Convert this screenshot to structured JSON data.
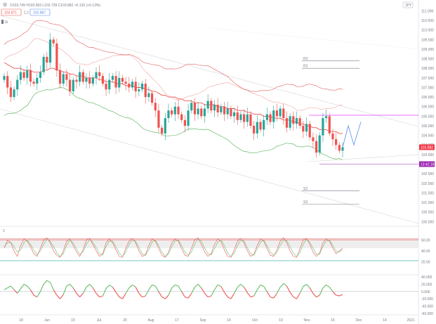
{
  "header": {
    "symbol_icon": "gear-icon",
    "ohlc": "O103.749 H103.953 L103.739 C103.882 +0.133 (+0.13%)",
    "sell_price": "103.871",
    "spread": "1.2",
    "buy_price": "103.887",
    "top_right_button": "JPY"
  },
  "indicator_label": "1k",
  "osc_label": "2",
  "colors": {
    "bull": "#26a69a",
    "bear": "#ef5350",
    "band_red": "#e57373",
    "band_green": "#66bb6a",
    "magenta": "#e040fb",
    "blue": "#5b8def",
    "axis_text": "#787b86",
    "badge_red": "#f23645",
    "badge_magenta": "#9c27b0"
  },
  "price_axis": {
    "labels": [
      "111.000",
      "110.500",
      "110.000",
      "109.500",
      "109.000",
      "108.500",
      "108.000",
      "107.500",
      "107.000",
      "106.500",
      "106.000",
      "105.500",
      "105.000",
      "104.500",
      "104.000",
      "103.500",
      "103.000",
      "102.500",
      "102.000",
      "101.500",
      "101.000",
      "100.500",
      "100.000"
    ],
    "last_price_badge": "103.882",
    "level_badge": "13:42:18"
  },
  "osc_axis": {
    "labels": [
      "60.00",
      "40.00",
      "20.00"
    ]
  },
  "osc2_axis": {
    "labels": [
      "40.000",
      "20.000",
      "0.000",
      "-20.000",
      "-40.000",
      "-60.000"
    ]
  },
  "pivots": [
    {
      "label": "R3",
      "price": 108.4
    },
    {
      "label": "R2",
      "price": 108.0
    },
    {
      "label": "S2",
      "price": 101.6
    },
    {
      "label": "S3",
      "price": 100.9
    }
  ],
  "time_axis": [
    "18",
    "Jun",
    "15",
    "Jul",
    "20",
    "Aug",
    "17",
    "Sep",
    "14",
    "Oct",
    "19",
    "Nov",
    "16",
    "Dec",
    "14",
    "2021"
  ],
  "chart_data": {
    "type": "candlestick",
    "x_labels": [
      "18",
      "Jun",
      "15",
      "Jul",
      "20",
      "Aug",
      "17",
      "Sep",
      "14",
      "Oct",
      "19",
      "Nov",
      "16",
      "Dec",
      "14",
      "2021"
    ],
    "ylim": [
      99.9,
      111.2
    ],
    "last_price": 103.882,
    "closes": [
      107.6,
      107.0,
      106.5,
      106.9,
      107.4,
      107.8,
      107.5,
      107.9,
      107.3,
      107.2,
      107.5,
      107.8,
      108.6,
      108.3,
      109.5,
      109.3,
      107.9,
      107.2,
      107.7,
      107.4,
      106.8,
      107.4,
      107.3,
      107.8,
      107.3,
      107.5,
      107.2,
      107.5,
      107.8,
      107.6,
      107.2,
      106.9,
      107.4,
      107.6,
      107.0,
      107.5,
      107.3,
      107.2,
      107.0,
      107.3,
      106.8,
      106.9,
      107.2,
      106.5,
      106.7,
      106.2,
      105.8,
      104.9,
      104.6,
      105.4,
      105.8,
      105.6,
      106.0,
      105.6,
      105.3,
      105.0,
      105.8,
      106.2,
      105.6,
      105.9,
      105.5,
      105.9,
      106.3,
      105.8,
      106.1,
      105.7,
      106.0,
      105.6,
      105.9,
      105.5,
      105.7,
      105.3,
      105.6,
      105.2,
      105.6,
      105.0,
      104.6,
      105.2,
      104.8,
      105.3,
      105.6,
      105.2,
      105.8,
      105.5,
      105.9,
      105.4,
      104.9,
      105.5,
      105.1,
      105.4,
      105.0,
      104.7,
      105.1,
      104.4,
      104.2,
      103.6,
      104.5,
      105.4,
      105.5,
      104.6,
      104.3,
      104.0,
      103.7,
      103.882
    ],
    "ema_red": [
      108.3,
      108.2,
      108.1,
      108.0,
      108.0,
      108.0,
      107.9,
      107.9,
      107.9,
      107.8,
      107.8,
      107.8,
      107.9,
      107.9,
      108.0,
      108.0,
      107.9,
      107.9,
      107.8,
      107.8,
      107.7,
      107.7,
      107.6,
      107.6,
      107.6,
      107.5,
      107.5,
      107.5,
      107.5,
      107.4,
      107.4,
      107.3,
      107.3,
      107.3,
      107.2,
      107.2,
      107.2,
      107.1,
      107.1,
      107.1,
      107.0,
      107.0,
      107.0,
      106.9,
      106.9,
      106.8,
      106.8,
      106.7,
      106.6,
      106.6,
      106.5,
      106.5,
      106.5,
      106.4,
      106.4,
      106.3,
      106.3,
      106.3,
      106.2,
      106.2,
      106.2,
      106.1,
      106.1,
      106.1,
      106.1,
      106.0,
      106.0,
      106.0,
      105.9,
      105.9,
      105.9,
      105.8,
      105.8,
      105.8,
      105.7,
      105.7,
      105.6,
      105.6,
      105.6,
      105.5,
      105.5,
      105.5,
      105.4,
      105.4,
      105.4,
      105.3,
      105.3,
      105.3,
      105.2,
      105.2,
      105.1,
      105.1,
      105.0,
      105.0,
      104.9,
      104.9,
      104.8,
      104.8,
      104.8,
      104.7,
      104.7,
      104.7,
      104.6,
      104.6
    ]
  },
  "osc_data": {
    "stoch_k": [
      45,
      60,
      55,
      40,
      30,
      50,
      62,
      58,
      48,
      35,
      30,
      45,
      60,
      64,
      55,
      40,
      32,
      28,
      40,
      58,
      62,
      50,
      38,
      30,
      42,
      60,
      63,
      52,
      40,
      30,
      35,
      55,
      62,
      55,
      42,
      30,
      28,
      45,
      58,
      63,
      55,
      40,
      30,
      33,
      50,
      62,
      58,
      45,
      32,
      28,
      38,
      55,
      62,
      58,
      44,
      32,
      30,
      45,
      60,
      64,
      52,
      38,
      30,
      35,
      52,
      62,
      57,
      42,
      30,
      28,
      42,
      58,
      63,
      55,
      40,
      30,
      34,
      50,
      62,
      58,
      44,
      32,
      30,
      42,
      58,
      64,
      55,
      40,
      30,
      28,
      44,
      60,
      63,
      52,
      38,
      30,
      36,
      55,
      62,
      58,
      45,
      35,
      40,
      45
    ],
    "stoch_d": [
      48,
      55,
      56,
      48,
      38,
      42,
      55,
      60,
      52,
      42,
      33,
      40,
      52,
      62,
      58,
      48,
      37,
      30,
      35,
      50,
      60,
      55,
      44,
      34,
      38,
      52,
      61,
      56,
      46,
      35,
      33,
      48,
      58,
      58,
      48,
      36,
      30,
      38,
      52,
      60,
      58,
      46,
      35,
      32,
      42,
      56,
      60,
      50,
      38,
      30,
      34,
      48,
      58,
      60,
      50,
      38,
      32,
      38,
      52,
      62,
      58,
      45,
      35,
      33,
      44,
      56,
      60,
      50,
      36,
      30,
      36,
      50,
      60,
      58,
      46,
      35,
      32,
      44,
      56,
      60,
      50,
      38,
      32,
      37,
      50,
      60,
      59,
      48,
      36,
      30,
      37,
      52,
      61,
      56,
      45,
      34,
      34,
      48,
      58,
      60,
      50,
      40,
      38,
      42
    ]
  },
  "osc2_data": [
    5,
    10,
    15,
    5,
    -5,
    8,
    20,
    15,
    5,
    -10,
    -15,
    0,
    20,
    30,
    25,
    5,
    -10,
    -20,
    -8,
    15,
    20,
    10,
    -5,
    -15,
    -5,
    12,
    20,
    10,
    -5,
    -15,
    -12,
    8,
    18,
    12,
    -2,
    -15,
    -20,
    -5,
    10,
    18,
    12,
    -5,
    -15,
    -12,
    5,
    18,
    15,
    0,
    -15,
    -20,
    -10,
    10,
    18,
    15,
    0,
    -15,
    -18,
    -5,
    12,
    20,
    10,
    -5,
    -15,
    -12,
    5,
    18,
    14,
    -2,
    -15,
    -20,
    -5,
    12,
    20,
    12,
    -3,
    -15,
    -12,
    5,
    18,
    14,
    0,
    -15,
    -18,
    -5,
    12,
    22,
    15,
    -2,
    -15,
    -20,
    -5,
    14,
    20,
    10,
    -5,
    -15,
    -10,
    10,
    18,
    12,
    0,
    -10,
    -12,
    -8
  ]
}
